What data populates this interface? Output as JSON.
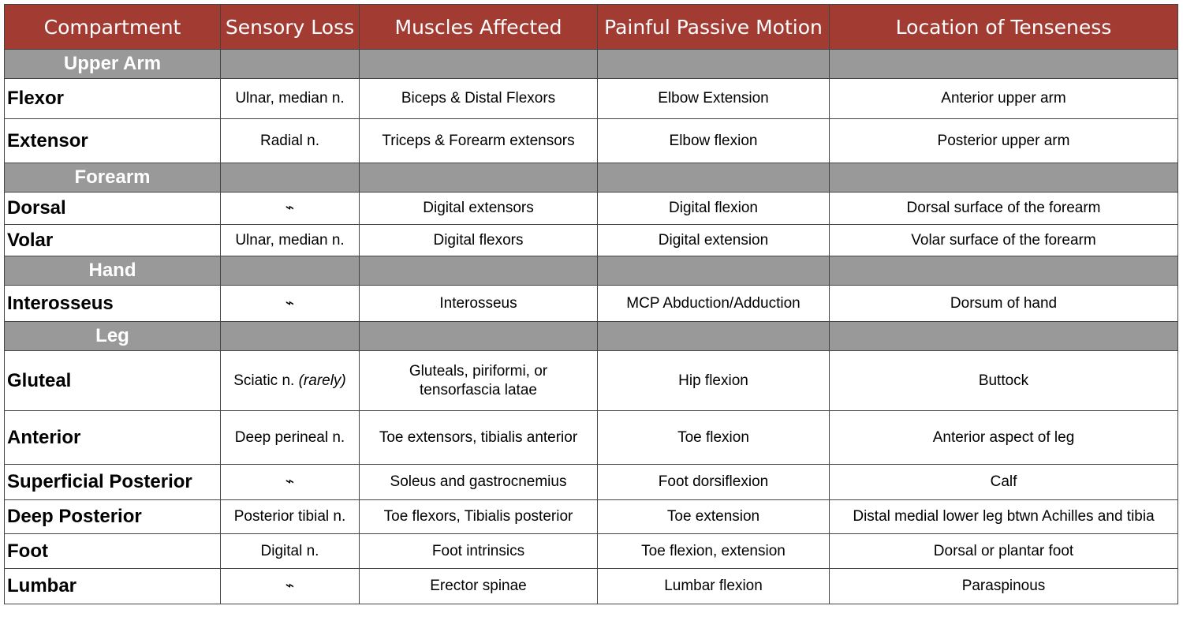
{
  "table": {
    "headers": [
      "Compartment",
      "Sensory Loss",
      "Muscles Affected",
      "Painful Passive Motion",
      "Location of Tenseness"
    ],
    "colors": {
      "header_bg": "#a23c33",
      "section_bg": "#999999",
      "header_text": "#ffffff"
    },
    "sections": [
      {
        "name": "Upper Arm",
        "rows": [
          {
            "name": "Flexor",
            "sensory": "Ulnar, median n.",
            "muscles": "Biceps & Distal Flexors",
            "motion": "Elbow Extension",
            "location": "Anterior upper arm"
          },
          {
            "name": "Extensor",
            "sensory": "Radial n.",
            "muscles": "Triceps & Forearm extensors",
            "motion": "Elbow flexion",
            "location": "Posterior upper arm"
          }
        ]
      },
      {
        "name": "Forearm",
        "rows": [
          {
            "name": "Dorsal",
            "sensory": "⌁",
            "muscles": "Digital extensors",
            "motion": "Digital flexion",
            "location": "Dorsal surface of the forearm"
          },
          {
            "name": "Volar",
            "sensory": "Ulnar, median n.",
            "muscles": "Digital flexors",
            "motion": "Digital extension",
            "location": "Volar surface of the forearm"
          }
        ]
      },
      {
        "name": "Hand",
        "rows": [
          {
            "name": "Interosseus",
            "sensory": "⌁",
            "muscles": "Interosseus",
            "motion": "MCP Abduction/Adduction",
            "location": "Dorsum of hand"
          }
        ]
      },
      {
        "name": "Leg",
        "rows": [
          {
            "name": "Gluteal",
            "sensory": "Sciatic n.",
            "sensory_note": "(rarely)",
            "muscles": "Gluteals, piriformi, or",
            "muscles_line2": "tensorfascia latae",
            "motion": "Hip flexion",
            "location": "Buttock"
          },
          {
            "name": "Anterior",
            "sensory": "Deep perineal n.",
            "muscles": "Toe extensors, tibialis anterior",
            "motion": "Toe flexion",
            "location": "Anterior aspect of leg"
          },
          {
            "name": "Superficial Posterior",
            "sensory": "⌁",
            "muscles": "Soleus and gastrocnemius",
            "motion": "Foot dorsiflexion",
            "location": "Calf"
          },
          {
            "name": "Deep Posterior",
            "sensory": "Posterior tibial n.",
            "muscles": "Toe flexors, Tibialis posterior",
            "motion": "Toe extension",
            "location": "Distal medial lower leg btwn Achilles and tibia"
          },
          {
            "name": "Foot",
            "sensory": "Digital n.",
            "muscles": "Foot intrinsics",
            "motion": "Toe flexion, extension",
            "location": "Dorsal or plantar foot"
          },
          {
            "name": "Lumbar",
            "sensory": "⌁",
            "muscles": "Erector spinae",
            "motion": "Lumbar flexion",
            "location": "Paraspinous"
          }
        ]
      }
    ]
  }
}
